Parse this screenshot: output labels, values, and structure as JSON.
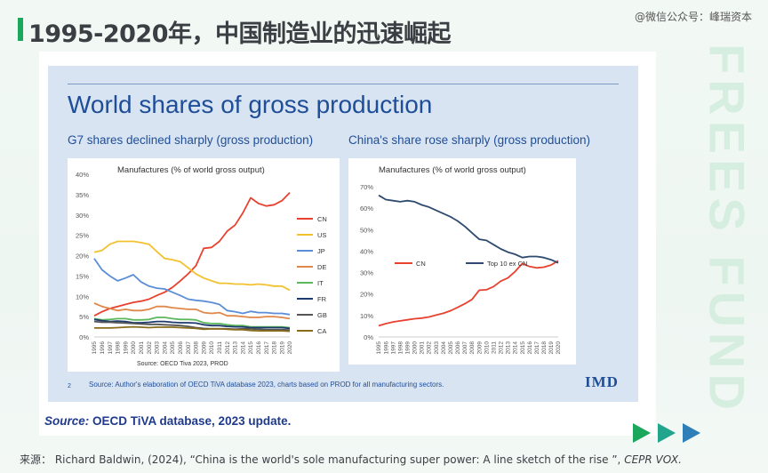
{
  "header": {
    "title": "1995-2020年，中国制造业的迅速崛起",
    "watermark": "@微信公众号：峰瑞资本",
    "side_watermark": "FREES FUND"
  },
  "slide": {
    "title": "World shares of gross production",
    "subtitle_left": "G7 shares declined sharply (gross production)",
    "subtitle_right": "China's share rose sharply (gross production)",
    "slide_number": "2",
    "source_note": "Source: Author's elaboration of OECD    TiVA database 2023, charts based on PROD for all manufacturing sectors.",
    "logo": "IMD"
  },
  "card_source": {
    "label": "Source:",
    "text": " OECD TiVA database, 2023 update."
  },
  "footer": {
    "prefix": "来源：  Richard Baldwin, (2024), “China is the world's sole manufacturing super power: A line sketch of the rise ”, ",
    "journal": "CEPR VOX."
  },
  "colors": {
    "accent": "#1ba85c",
    "slide_blue": "#1f4e99",
    "CN": "#e8412f",
    "US": "#f2c12e",
    "JP": "#5b8ed6",
    "DE": "#e0874a",
    "IT": "#5cb85c",
    "FR": "#1f3a6e",
    "GB": "#555555",
    "CA": "#8a6d1a",
    "Top10": "#2e4a6e"
  },
  "chart_data": [
    {
      "type": "line",
      "title": "Manufactures (% of world gross output)",
      "note": "Source: OECD Tiva 2023, PROD",
      "x": [
        "1995",
        "1996",
        "1997",
        "1998",
        "1999",
        "2000",
        "2001",
        "2002",
        "2003",
        "2004",
        "2005",
        "2006",
        "2007",
        "2008",
        "2009",
        "2010",
        "2011",
        "2012",
        "2013",
        "2014",
        "2015",
        "2016",
        "2017",
        "2018",
        "2019",
        "2020"
      ],
      "y_ticks": [
        "0%",
        "5%",
        "10%",
        "15%",
        "20%",
        "25%",
        "30%",
        "35%",
        "40%"
      ],
      "ylim": [
        0,
        40
      ],
      "legend_position": "right",
      "series": [
        {
          "name": "CN",
          "values": [
            5.2,
            6.2,
            7.0,
            7.5,
            8.0,
            8.5,
            8.8,
            9.3,
            10.2,
            11.0,
            12.2,
            13.8,
            15.5,
            17.5,
            21.8,
            22.0,
            23.5,
            26.0,
            27.5,
            30.5,
            34.2,
            32.8,
            32.2,
            32.5,
            33.5,
            35.5
          ]
        },
        {
          "name": "US",
          "values": [
            20.8,
            21.3,
            22.8,
            23.5,
            23.5,
            23.5,
            23.2,
            22.8,
            21.0,
            19.3,
            19.0,
            18.5,
            17.0,
            15.5,
            14.5,
            13.8,
            13.2,
            13.2,
            13.0,
            13.0,
            12.8,
            13.0,
            12.8,
            12.5,
            12.5,
            11.5
          ]
        },
        {
          "name": "JP",
          "values": [
            19.3,
            16.5,
            15.0,
            13.8,
            14.5,
            15.3,
            13.5,
            12.5,
            12.0,
            11.8,
            11.0,
            10.2,
            9.3,
            9.0,
            8.8,
            8.5,
            8.0,
            6.5,
            6.2,
            5.8,
            6.3,
            6.0,
            6.0,
            5.8,
            5.8,
            5.5
          ]
        },
        {
          "name": "DE",
          "values": [
            8.3,
            7.5,
            7.0,
            6.5,
            6.8,
            6.5,
            6.5,
            6.8,
            7.5,
            7.5,
            7.2,
            7.0,
            6.8,
            6.8,
            6.0,
            5.8,
            6.0,
            5.2,
            5.2,
            5.0,
            4.8,
            4.8,
            5.0,
            5.0,
            4.8,
            4.5
          ]
        },
        {
          "name": "IT",
          "values": [
            4.5,
            4.2,
            4.3,
            4.5,
            4.5,
            4.2,
            4.2,
            4.3,
            4.8,
            4.8,
            4.5,
            4.3,
            4.3,
            4.2,
            3.5,
            3.3,
            3.3,
            3.0,
            2.8,
            2.8,
            2.5,
            2.5,
            2.5,
            2.5,
            2.5,
            2.3
          ]
        },
        {
          "name": "FR",
          "values": [
            4.3,
            4.0,
            3.8,
            3.9,
            3.8,
            3.5,
            3.5,
            3.6,
            3.8,
            3.8,
            3.6,
            3.5,
            3.5,
            3.4,
            3.0,
            2.8,
            2.8,
            2.6,
            2.5,
            2.5,
            2.3,
            2.3,
            2.3,
            2.3,
            2.3,
            2.1
          ]
        },
        {
          "name": "GB",
          "values": [
            3.8,
            3.6,
            3.6,
            3.5,
            3.4,
            3.3,
            3.2,
            3.1,
            3.1,
            3.0,
            2.9,
            2.8,
            2.6,
            2.3,
            2.1,
            2.0,
            2.0,
            2.0,
            1.9,
            2.0,
            2.0,
            1.9,
            1.8,
            1.8,
            1.8,
            1.7
          ]
        },
        {
          "name": "CA",
          "values": [
            2.2,
            2.2,
            2.2,
            2.3,
            2.4,
            2.5,
            2.4,
            2.3,
            2.4,
            2.4,
            2.4,
            2.3,
            2.2,
            2.1,
            1.9,
            2.0,
            2.0,
            1.9,
            1.8,
            1.8,
            1.6,
            1.5,
            1.5,
            1.5,
            1.5,
            1.4
          ]
        }
      ]
    },
    {
      "type": "line",
      "title": "Manufactures (% of world gross output)",
      "x": [
        "1995",
        "1996",
        "1997",
        "1998",
        "1999",
        "2000",
        "2001",
        "2002",
        "2003",
        "2004",
        "2005",
        "2006",
        "2007",
        "2008",
        "2009",
        "2010",
        "2011",
        "2012",
        "2013",
        "2014",
        "2015",
        "2016",
        "2017",
        "2018",
        "2019",
        "2020"
      ],
      "y_ticks": [
        "0%",
        "10%",
        "20%",
        "30%",
        "40%",
        "50%",
        "60%",
        "70%"
      ],
      "ylim": [
        0,
        70
      ],
      "legend_position": "center",
      "series": [
        {
          "name": "CN",
          "values": [
            5.2,
            6.2,
            7.0,
            7.5,
            8.0,
            8.5,
            8.8,
            9.3,
            10.2,
            11.0,
            12.2,
            13.8,
            15.5,
            17.5,
            21.8,
            22.0,
            23.5,
            26.0,
            27.5,
            30.5,
            34.2,
            32.8,
            32.2,
            32.5,
            33.5,
            35.5
          ]
        },
        {
          "name": "Top  10 ex CN",
          "values": [
            66,
            64,
            63.5,
            63,
            63.5,
            63,
            61.5,
            60.5,
            59,
            57.5,
            56,
            54,
            51.5,
            48.5,
            45.5,
            45,
            43,
            41,
            39.5,
            38.5,
            37,
            37.5,
            37.5,
            37,
            36,
            34.5
          ]
        }
      ]
    }
  ]
}
